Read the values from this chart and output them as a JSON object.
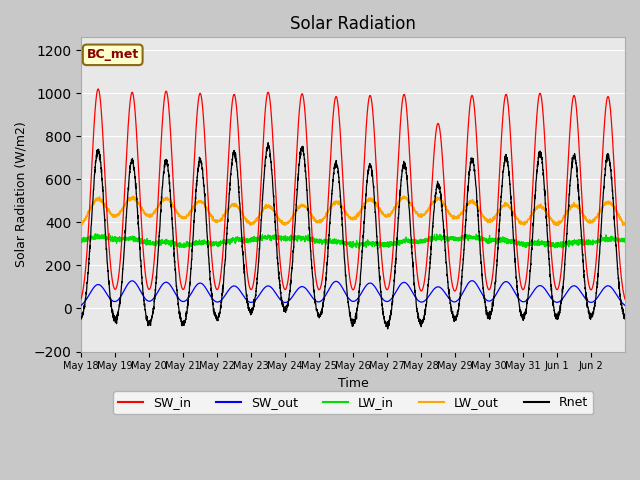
{
  "title": "Solar Radiation",
  "ylabel": "Solar Radiation (W/m2)",
  "xlabel": "Time",
  "ylim": [
    -200,
    1260
  ],
  "yticks": [
    -200,
    0,
    200,
    400,
    600,
    800,
    1000,
    1200
  ],
  "n_days": 16,
  "annotation_text": "BC_met",
  "fig_bg_color": "#c8c8c8",
  "plot_bg_color": "#e8e8e8",
  "series": {
    "SW_in": {
      "color": "#ff0000",
      "label": "SW_in"
    },
    "SW_out": {
      "color": "#0000ff",
      "label": "SW_out"
    },
    "LW_in": {
      "color": "#00dd00",
      "label": "LW_in"
    },
    "LW_out": {
      "color": "#ffa500",
      "label": "LW_out"
    },
    "Rnet": {
      "color": "#000000",
      "label": "Rnet"
    }
  },
  "tick_labels": [
    "May 18",
    "May 19",
    "May 20",
    "May 21",
    "May 22",
    "May 23",
    "May 24",
    "May 25",
    "May 26",
    "May 27",
    "May 28",
    "May 29",
    "May 30",
    "May 31",
    "Jun 1",
    "Jun 2"
  ]
}
